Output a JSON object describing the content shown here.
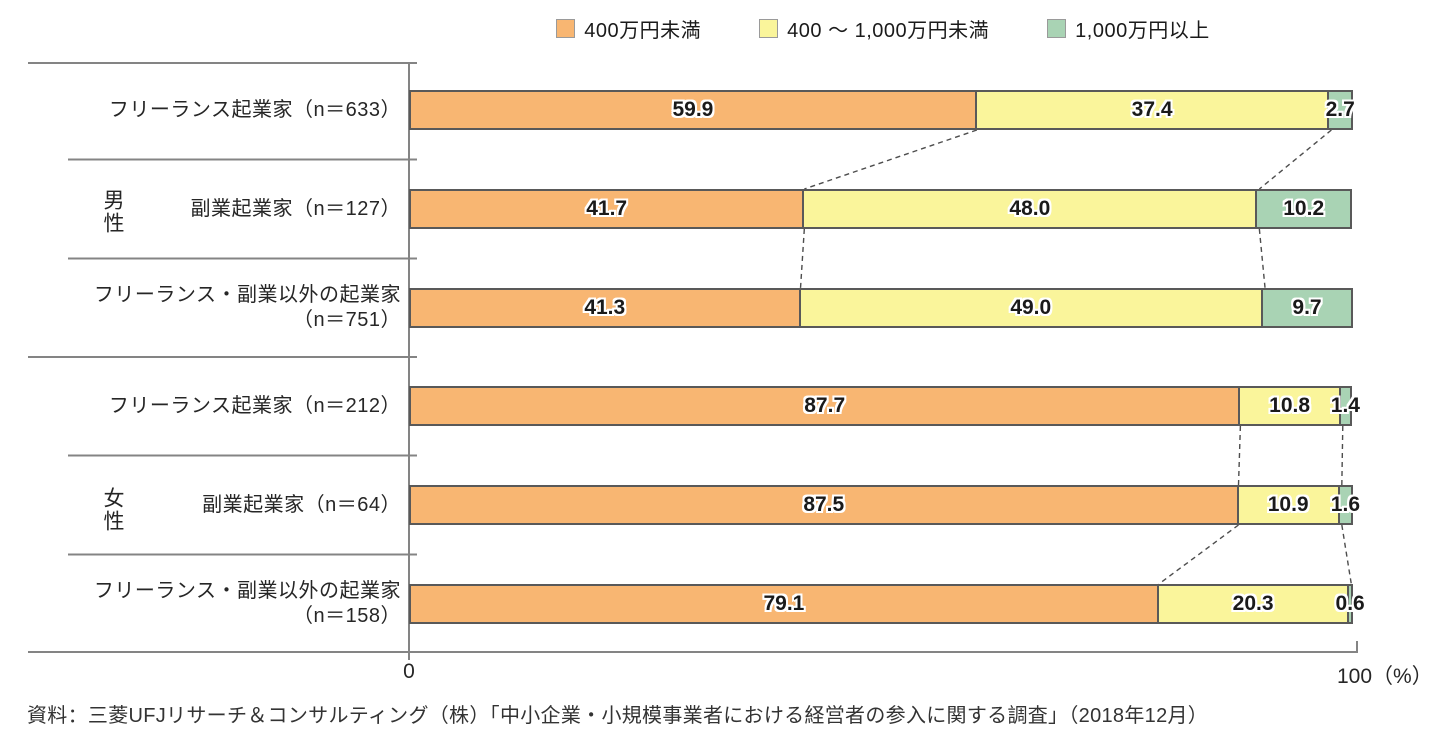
{
  "legend": {
    "items": [
      {
        "label": "400万円未満",
        "color": "#F8B672"
      },
      {
        "label": "400 ～ 1,000万円未満",
        "color": "#FAF59B"
      },
      {
        "label": "1,000万円以上",
        "color": "#A9D3B4"
      }
    ]
  },
  "axis": {
    "min_label": "0",
    "max_label": "100（%）"
  },
  "footer": {
    "source": "資料：三菱UFJリサーチ＆コンサルティング（株）「中小企業・小規模事業者における経営者の参入に関する調査」（2018年12月）"
  },
  "chart_data": {
    "type": "bar",
    "orientation": "horizontal",
    "stacked": true,
    "unit": "%",
    "xlim": [
      0,
      100
    ],
    "x_tick_labels": [
      "0",
      "100（%）"
    ],
    "legend_position": "top",
    "series_names": [
      "400万円未満",
      "400～1,000万円未満",
      "1,000万円以上"
    ],
    "groups": [
      {
        "label": "男性",
        "rows": [
          {
            "label_lines": [
              "フリーランス起業家（n＝633）"
            ],
            "values": [
              59.9,
              37.4,
              2.7
            ]
          },
          {
            "label_lines": [
              "副業起業家（n＝127）"
            ],
            "values": [
              41.7,
              48.0,
              10.2
            ]
          },
          {
            "label_lines": [
              "フリーランス・副業以外の起業家",
              "（n＝751）"
            ],
            "values": [
              41.3,
              49.0,
              9.7
            ]
          }
        ]
      },
      {
        "label": "女性",
        "rows": [
          {
            "label_lines": [
              "フリーランス起業家（n＝212）"
            ],
            "values": [
              87.7,
              10.8,
              1.4
            ]
          },
          {
            "label_lines": [
              "副業起業家（n＝64）"
            ],
            "values": [
              87.5,
              10.9,
              1.6
            ]
          },
          {
            "label_lines": [
              "フリーランス・副業以外の起業家",
              "（n＝158）"
            ],
            "values": [
              79.1,
              20.3,
              0.6
            ]
          }
        ]
      }
    ]
  }
}
